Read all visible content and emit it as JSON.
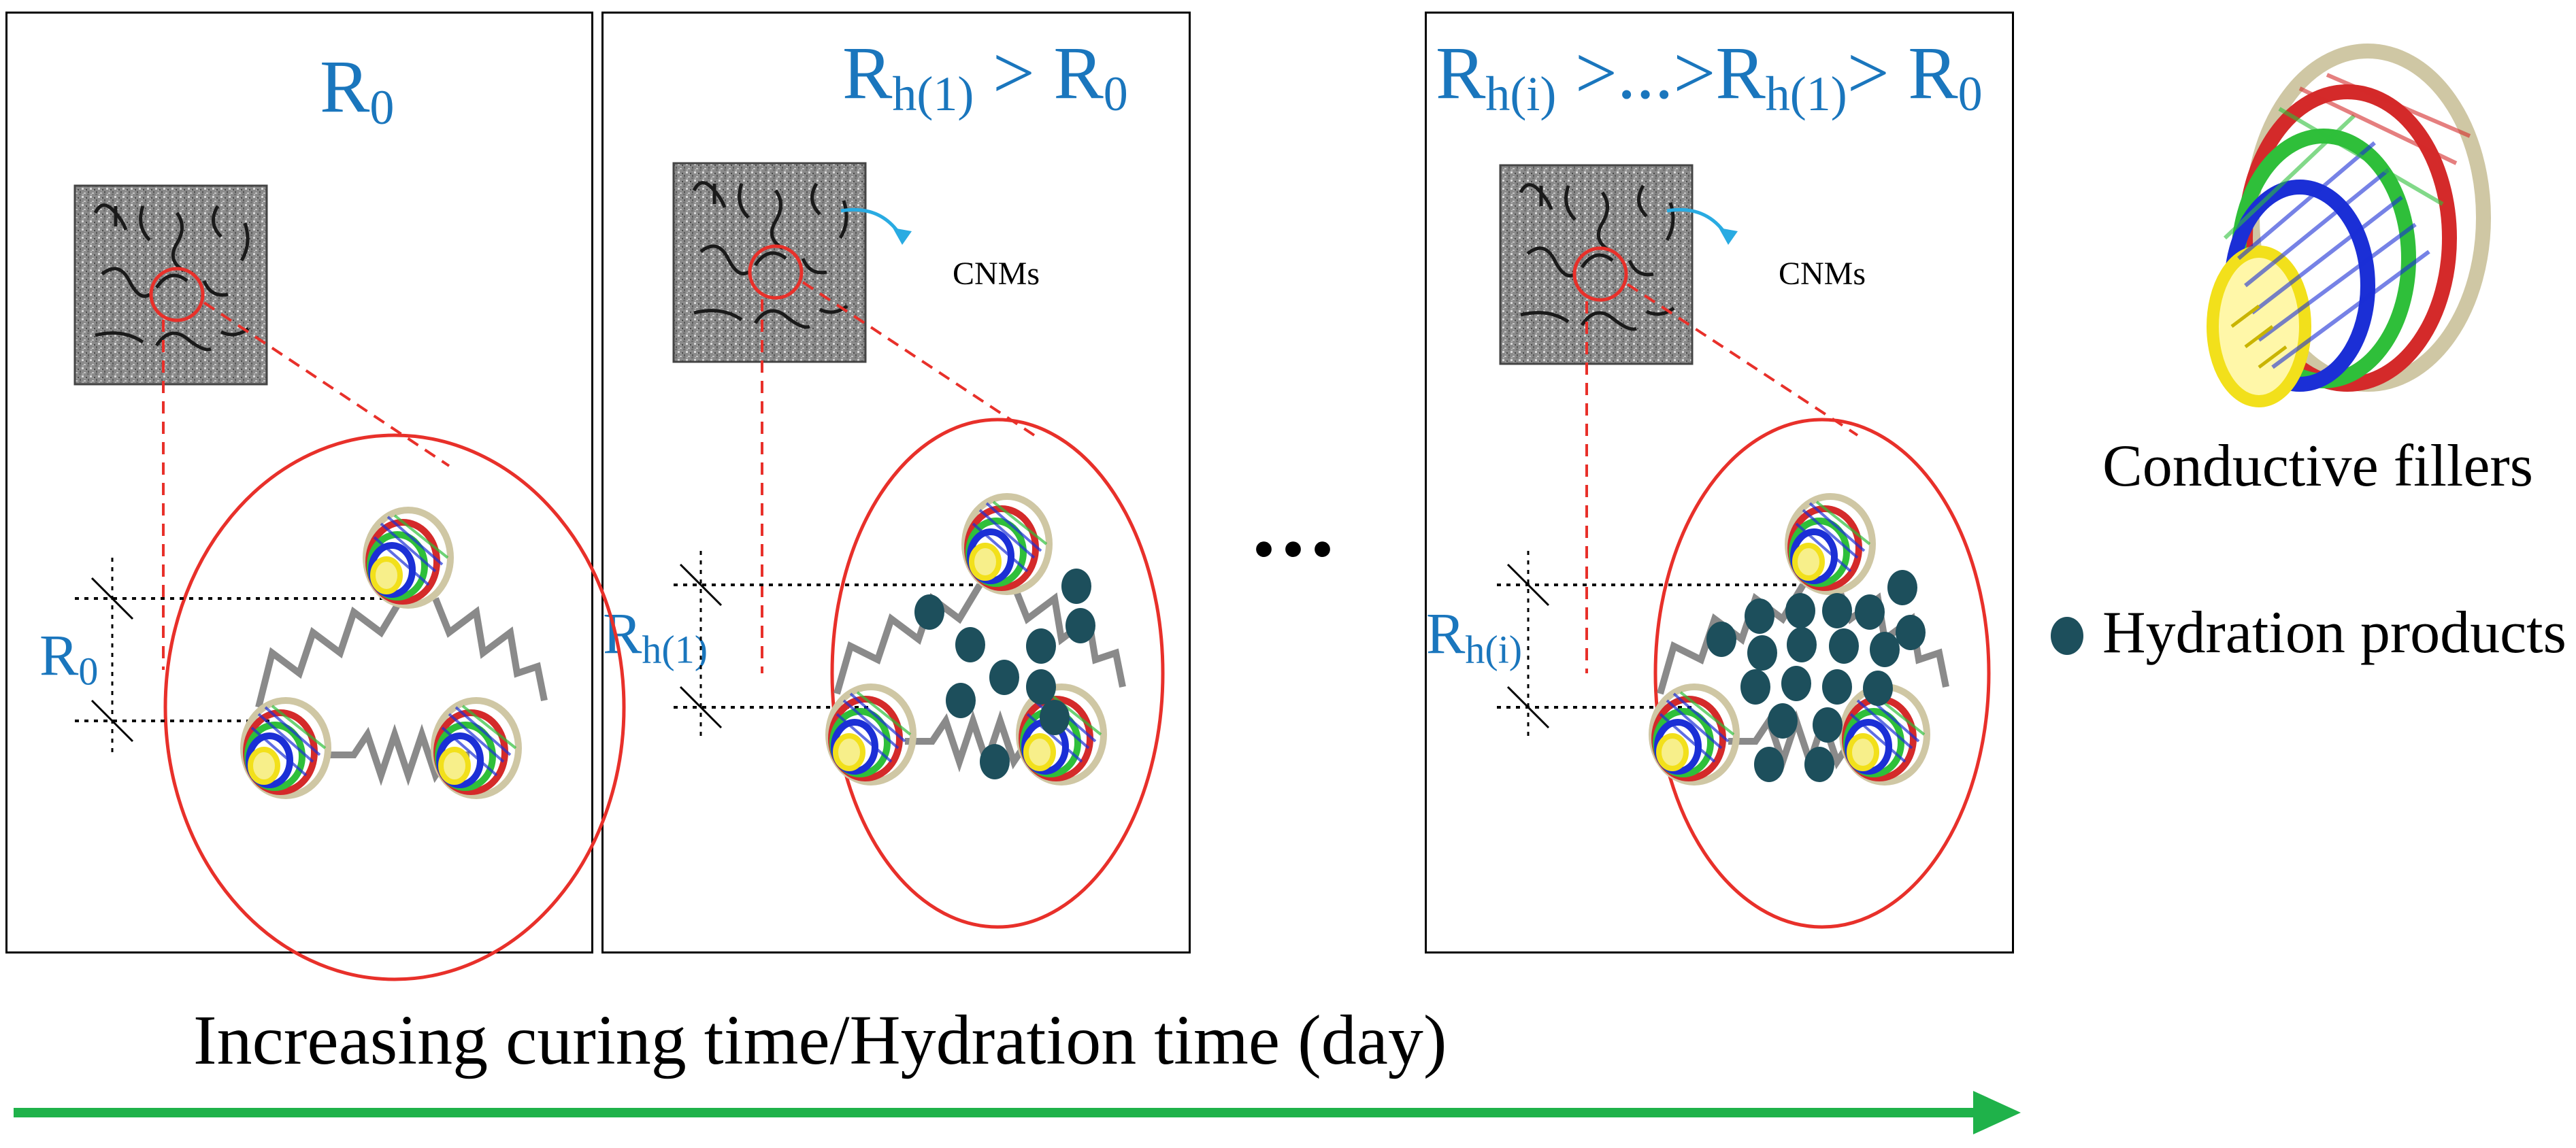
{
  "panels": [
    {
      "title_main": "R",
      "title_sub": "0",
      "resistance_main": "R",
      "resistance_sub": "0"
    },
    {
      "title_parts": [
        {
          "main": "R",
          "sub": "h(1)"
        },
        {
          "text": " > "
        },
        {
          "main": "R",
          "sub": "0"
        }
      ],
      "resistance_main": "R",
      "resistance_sub": "h(1)",
      "cnms_label": "CNMs"
    },
    {
      "title_parts": [
        {
          "main": "R",
          "sub": "h(i)"
        },
        {
          "text": " >...>"
        },
        {
          "main": "R",
          "sub": "h(1)"
        },
        {
          "text": "> "
        },
        {
          "main": "R",
          "sub": "0"
        }
      ],
      "resistance_main": "R",
      "resistance_sub": "h(i)",
      "cnms_label": "CNMs"
    }
  ],
  "ellipsis": "...",
  "legend": {
    "fillers_label": "Conductive fillers",
    "hydration_label": "Hydration products"
  },
  "axis": {
    "label": "Increasing curing time/Hydration time (day)"
  },
  "colors": {
    "title_blue": "#1a76bd",
    "cnm_arrow": "#29abe2",
    "red_lines": "#e8302a",
    "hydration_dot": "#1d4f5c",
    "arrow_green": "#1fb24a",
    "tube_yellow": "#f2e01b",
    "tube_blue": "#1b2fd6",
    "tube_green": "#2fbf3a",
    "tube_red": "#d42a2a",
    "tube_beige": "#cfc7a4"
  }
}
